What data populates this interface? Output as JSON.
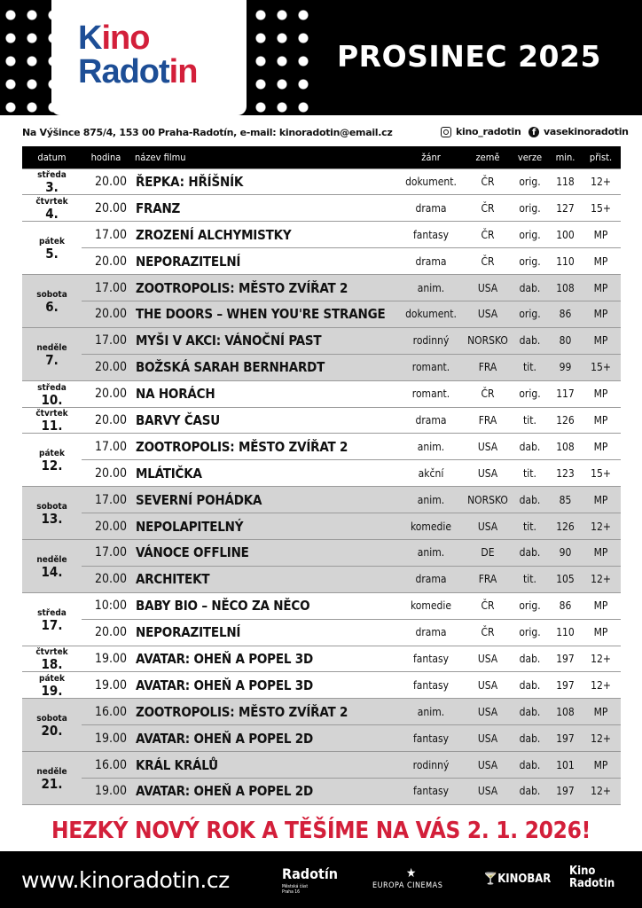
{
  "header": {
    "logo_line1": "Kino",
    "logo_line2": "Radotin",
    "month_title": "PROSINEC 2025"
  },
  "contact": {
    "address": "Na Výšince 875/4, 153 00  Praha-Radotín, e-mail: kinoradotin@email.cz",
    "instagram": "kino_radotin",
    "facebook": "vasekinoradotin"
  },
  "table_headers": [
    "datum",
    "hodina",
    "název filmu",
    "žánr",
    "země",
    "verze",
    "min.",
    "přist."
  ],
  "colors": {
    "accent_red": "#d31f3a",
    "logo_blue": "#1d4e96",
    "row_shade": "#d4d4d4"
  },
  "days": [
    {
      "day": "středa",
      "date": "3.",
      "shows": [
        [
          "20.00",
          "ŘEPKA: HŘÍŠNÍK",
          "dokument.",
          "ČR",
          "orig.",
          "118",
          "12+"
        ]
      ]
    },
    {
      "day": "čtvrtek",
      "date": "4.",
      "shows": [
        [
          "20.00",
          "FRANZ",
          "drama",
          "ČR",
          "orig.",
          "127",
          "15+"
        ]
      ]
    },
    {
      "day": "pátek",
      "date": "5.",
      "shows": [
        [
          "17.00",
          "ZROZENÍ ALCHYMISTKY",
          "fantasy",
          "ČR",
          "orig.",
          "100",
          "MP"
        ],
        [
          "20.00",
          "NEPORAZITELNÍ",
          "drama",
          "ČR",
          "orig.",
          "110",
          "MP"
        ]
      ]
    },
    {
      "day": "sobota",
      "date": "6.",
      "shaded": true,
      "shows": [
        [
          "17.00",
          "ZOOTROPOLIS: MĚSTO ZVÍŘAT 2",
          "anim.",
          "USA",
          "dab.",
          "108",
          "MP"
        ],
        [
          "20.00",
          "THE DOORS – WHEN YOU'RE STRANGE",
          "dokument.",
          "USA",
          "orig.",
          "86",
          "MP"
        ]
      ]
    },
    {
      "day": "neděle",
      "date": "7.",
      "shaded": true,
      "shows": [
        [
          "17.00",
          "MYŠI V AKCI: VÁNOČNÍ PAST",
          "rodinný",
          "NORSKO",
          "dab.",
          "80",
          "MP"
        ],
        [
          "20.00",
          "BOŽSKÁ SARAH BERNHARDT",
          "romant.",
          "FRA",
          "tit.",
          "99",
          "15+"
        ]
      ]
    },
    {
      "day": "středa",
      "date": "10.",
      "shows": [
        [
          "20.00",
          "NA HORÁCH",
          "romant.",
          "ČR",
          "orig.",
          "117",
          "MP"
        ]
      ]
    },
    {
      "day": "čtvrtek",
      "date": "11.",
      "shows": [
        [
          "20.00",
          "BARVY ČASU",
          "drama",
          "FRA",
          "tit.",
          "126",
          "MP"
        ]
      ]
    },
    {
      "day": "pátek",
      "date": "12.",
      "shows": [
        [
          "17.00",
          "ZOOTROPOLIS: MĚSTO ZVÍŘAT 2",
          "anim.",
          "USA",
          "dab.",
          "108",
          "MP"
        ],
        [
          "20.00",
          "MLÁTIČKA",
          "akční",
          "USA",
          "tit.",
          "123",
          "15+"
        ]
      ]
    },
    {
      "day": "sobota",
      "date": "13.",
      "shaded": true,
      "shows": [
        [
          "17.00",
          "SEVERNÍ POHÁDKA",
          "anim.",
          "NORSKO",
          "dab.",
          "85",
          "MP"
        ],
        [
          "20.00",
          "NEPOLAPITELNÝ",
          "komedie",
          "USA",
          "tit.",
          "126",
          "12+"
        ]
      ]
    },
    {
      "day": "neděle",
      "date": "14.",
      "shaded": true,
      "shows": [
        [
          "17.00",
          "VÁNOCE OFFLINE",
          "anim.",
          "DE",
          "dab.",
          "90",
          "MP"
        ],
        [
          "20.00",
          "ARCHITEKT",
          "drama",
          "FRA",
          "tit.",
          "105",
          "12+"
        ]
      ]
    },
    {
      "day": "středa",
      "date": "17.",
      "shows": [
        [
          "10:00",
          "BABY BIO – NĚCO ZA NĚCO",
          "komedie",
          "ČR",
          "orig.",
          "86",
          "MP"
        ],
        [
          "20.00",
          "NEPORAZITELNÍ",
          "drama",
          "ČR",
          "orig.",
          "110",
          "MP"
        ]
      ]
    },
    {
      "day": "čtvrtek",
      "date": "18.",
      "shows": [
        [
          "19.00",
          "AVATAR: OHEŇ A POPEL 3D",
          "fantasy",
          "USA",
          "dab.",
          "197",
          "12+"
        ]
      ]
    },
    {
      "day": "pátek",
      "date": "19.",
      "shows": [
        [
          "19.00",
          "AVATAR: OHEŇ A POPEL 3D",
          "fantasy",
          "USA",
          "dab.",
          "197",
          "12+"
        ]
      ]
    },
    {
      "day": "sobota",
      "date": "20.",
      "shaded": true,
      "shows": [
        [
          "16.00",
          "ZOOTROPOLIS: MĚSTO ZVÍŘAT 2",
          "anim.",
          "USA",
          "dab.",
          "108",
          "MP"
        ],
        [
          "19.00",
          "AVATAR: OHEŇ A POPEL 2D",
          "fantasy",
          "USA",
          "dab.",
          "197",
          "12+"
        ]
      ]
    },
    {
      "day": "neděle",
      "date": "21.",
      "shaded": true,
      "shows": [
        [
          "16.00",
          "KRÁL KRÁLŮ",
          "rodinný",
          "USA",
          "dab.",
          "101",
          "MP"
        ],
        [
          "19.00",
          "AVATAR: OHEŇ A POPEL 2D",
          "fantasy",
          "USA",
          "dab.",
          "197",
          "12+"
        ]
      ]
    }
  ],
  "greeting": "HEZKÝ NOVÝ ROK A TĚŠÍME NA VÁS 2. 1. 2026!",
  "footer": {
    "url": "www.kinoradotin.cz",
    "partner_radotin": "Radotín",
    "partner_radotin_sub": "Městská část Praha 16",
    "partner_europa": "EUROPA CINEMAS",
    "partner_kinobar": "KINOBAR",
    "logo_line1": "Kino",
    "logo_line2": "Radotin"
  }
}
